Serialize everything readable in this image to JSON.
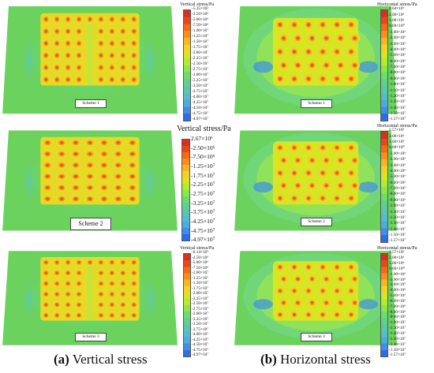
{
  "colorbar": [
    "#d7301f",
    "#e8471b",
    "#f56a15",
    "#f98f1a",
    "#fbb41e",
    "#f3d321",
    "#d9e522",
    "#b3ec2f",
    "#8ae84c",
    "#6ddc6e",
    "#5fd08f",
    "#5cc6ad",
    "#56bccb",
    "#4cabdf",
    "#3f8fe6",
    "#2f6de6"
  ],
  "figures": [
    {
      "id": "v1",
      "legend_title": "Vertical stress/Pa",
      "ticks": [
        "-5.35×10⁵",
        "-2.50×10⁶",
        "-5.00×10⁶",
        "-7.50×10⁶",
        "-1.00×10⁷",
        "-1.25×10⁷",
        "-1.50×10⁷",
        "-1.75×10⁷",
        "-2.00×10⁷",
        "-2.25×10⁷",
        "-2.50×10⁷",
        "-2.75×10⁷",
        "-3.00×10⁷",
        "-3.25×10⁷",
        "-3.50×10⁷",
        "-3.75×10⁷",
        "-4.00×10⁷",
        "-4.25×10⁷",
        "-4.50×10⁷",
        "-4.75×10⁷",
        "-4.97×10⁷"
      ],
      "scheme_label": "Scheme 1"
    },
    {
      "id": "v2",
      "legend_title": "Vertical stress/Pa",
      "ticks": [
        "2.67×10⁶",
        "-2.50×10⁶",
        "-7.50×10⁶",
        "-1.25×10⁷",
        "-1.75×10⁷",
        "-2.25×10⁷",
        "-2.75×10⁷",
        "-3.25×10⁷",
        "-3.75×10⁷",
        "-4.25×10⁷",
        "-4.75×10⁷",
        "-4.97×10⁷"
      ],
      "scheme_label": "Scheme 2"
    },
    {
      "id": "v3",
      "legend_title": "Vertical stress/Pa",
      "ticks": [
        "-6.14×10⁵",
        "-2.50×10⁶",
        "-5.00×10⁶",
        "-7.50×10⁶",
        "-1.00×10⁷",
        "-1.25×10⁷",
        "-1.50×10⁷",
        "-1.75×10⁷",
        "-2.00×10⁷",
        "-2.25×10⁷",
        "-2.50×10⁷",
        "-2.75×10⁷",
        "-3.00×10⁷",
        "-3.25×10⁷",
        "-3.50×10⁷",
        "-3.75×10⁷",
        "-4.00×10⁷",
        "-4.25×10⁷",
        "-4.50×10⁷",
        "-4.75×10⁷",
        "-4.97×10⁷"
      ],
      "scheme_label": "Scheme 3"
    },
    {
      "id": "h1",
      "legend_title": "Horizontal stress/Pa",
      "ticks": [
        "2.64×10⁶",
        "2.00×10⁶",
        "1.00×10⁶",
        "0.00×10⁰",
        "-1.00×10⁶",
        "-2.00×10⁶",
        "-3.00×10⁶",
        "-4.00×10⁶",
        "-5.00×10⁶",
        "-6.00×10⁶",
        "-7.00×10⁶",
        "-8.00×10⁶",
        "-9.00×10⁶",
        "-1.00×10⁷",
        "-1.10×10⁷",
        "-1.20×10⁷",
        "-1.30×10⁷",
        "-1.40×10⁷",
        "-1.50×10⁷",
        "-1.57×10⁷"
      ],
      "scheme_label": "Scheme 1"
    },
    {
      "id": "h2",
      "legend_title": "Horizontal stress/Pa",
      "ticks": [
        "2.57×10⁶",
        "2.00×10⁶",
        "1.00×10⁶",
        "0.00×10⁰",
        "-1.00×10⁶",
        "-2.00×10⁶",
        "-3.00×10⁶",
        "-4.00×10⁶",
        "-5.00×10⁶",
        "-6.00×10⁶",
        "-7.00×10⁶",
        "-8.00×10⁶",
        "-9.00×10⁶",
        "-1.00×10⁷",
        "-1.10×10⁷",
        "-1.20×10⁷",
        "-1.30×10⁷",
        "-1.40×10⁷",
        "-1.50×10⁷",
        "-1.57×10⁷"
      ],
      "scheme_label": "Scheme 2"
    },
    {
      "id": "h3",
      "legend_title": "Horizontal stress/Pa",
      "ticks": [
        "2.57×10⁶",
        "2.00×10⁶",
        "1.00×10⁶",
        "0.00×10⁰",
        "-1.00×10⁶",
        "-2.00×10⁶",
        "-3.00×10⁶",
        "-4.00×10⁶",
        "-5.00×10⁶",
        "-6.00×10⁶",
        "-7.00×10⁶",
        "-8.00×10⁶",
        "-9.00×10⁶",
        "-1.00×10⁷",
        "-1.10×10⁷",
        "-1.20×10⁷",
        "-1.30×10⁷",
        "-1.40×10⁷",
        "-1.50×10⁷",
        "-1.57×10⁷"
      ],
      "scheme_label": "Scheme 3"
    }
  ],
  "captions": {
    "left_letter": "(a)",
    "left_text": " Vertical stress",
    "right_letter": "(b)",
    "right_text": " Horizontal stress"
  }
}
